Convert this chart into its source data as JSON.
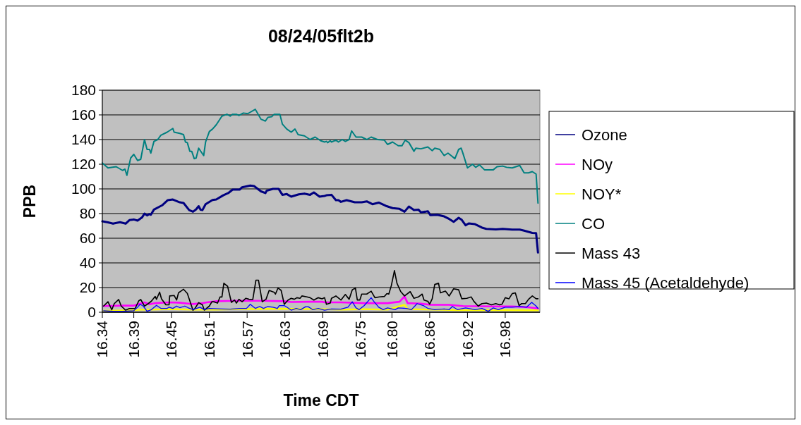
{
  "chart_data": {
    "type": "line",
    "title": "08/24/05flt2b",
    "xlabel": "Time CDT",
    "ylabel": "PPB",
    "xlim": [
      16.34,
      17.035
    ],
    "xticks": [
      16.34,
      16.39,
      16.45,
      16.51,
      16.57,
      16.63,
      16.69,
      16.75,
      {
        "value": 16.8,
        "label": "16.80"
      },
      16.86,
      16.92,
      16.98
    ],
    "ylim": [
      0,
      180
    ],
    "yticks": [
      0,
      20,
      40,
      60,
      80,
      100,
      120,
      140,
      160,
      180
    ],
    "grid": "y",
    "legend": "right",
    "line_style": "solid",
    "marker": "none",
    "series": [
      {
        "name": "Ozone",
        "color": "#000080",
        "x": [
          16.34,
          16.349,
          16.357,
          16.368,
          16.377,
          16.383,
          16.39,
          16.396,
          16.403,
          16.407,
          16.411,
          16.415,
          16.417,
          16.422,
          16.435,
          16.444,
          16.452,
          16.463,
          16.469,
          16.478,
          16.484,
          16.489,
          16.493,
          16.496,
          16.499,
          16.504,
          16.515,
          16.521,
          16.532,
          16.54,
          16.547,
          16.558,
          16.562,
          16.575,
          16.581,
          16.592,
          16.599,
          16.601,
          16.611,
          16.62,
          16.626,
          16.633,
          16.64,
          16.652,
          16.661,
          16.67,
          16.676,
          16.685,
          16.693,
          16.696,
          16.704,
          16.711,
          16.715,
          16.719,
          16.728,
          16.741,
          16.752,
          16.76,
          16.769,
          16.779,
          16.79,
          16.801,
          16.812,
          16.82,
          16.827,
          16.835,
          16.842,
          16.846,
          16.853,
          16.857,
          16.861,
          16.872,
          16.883,
          16.891,
          16.898,
          16.906,
          16.911,
          16.917,
          16.922,
          16.932,
          16.943,
          16.95,
          16.965,
          16.976,
          16.991,
          17.003,
          17.01,
          17.023,
          17.029,
          17.032
        ],
        "values": [
          73.7,
          72.8,
          71.8,
          73,
          71.8,
          74.7,
          75.2,
          74.3,
          76.8,
          80,
          78.5,
          79.6,
          79,
          83.2,
          86.7,
          90.9,
          91.4,
          89.1,
          88.6,
          82.8,
          81.5,
          83.4,
          86,
          83.2,
          82.8,
          87.6,
          91,
          91.4,
          94.8,
          96.6,
          99.4,
          99.4,
          101.3,
          102.7,
          102.3,
          98,
          96.6,
          98.5,
          100,
          100,
          95.2,
          95.8,
          93.7,
          95.6,
          96.2,
          95.2,
          97.1,
          93.7,
          94.3,
          94.8,
          95.2,
          90.9,
          90.9,
          89.5,
          90.9,
          89.1,
          89.1,
          89.9,
          87.6,
          88.9,
          86.3,
          84.4,
          83.8,
          81.5,
          85.7,
          82.8,
          83.2,
          81,
          81.5,
          81.9,
          78.7,
          79,
          77.7,
          75.6,
          73.3,
          76.6,
          74.8,
          70.5,
          72,
          71.4,
          68.6,
          67.6,
          67.2,
          67.6,
          67,
          67,
          66.1,
          64.3,
          64.1,
          48.4
        ]
      },
      {
        "name": "NOy",
        "color": "#ff00ff",
        "x": [
          16.342,
          16.372,
          16.39,
          16.407,
          16.415,
          16.424,
          16.446,
          16.461,
          16.476,
          16.484,
          16.499,
          16.506,
          16.521,
          16.551,
          16.596,
          16.629,
          16.64,
          16.67,
          16.689,
          16.693,
          16.719,
          16.756,
          16.793,
          16.812,
          16.82,
          16.825,
          16.846,
          16.861,
          16.891,
          16.913,
          16.961,
          16.991,
          17.017,
          17.032
        ],
        "values": [
          5,
          5.4,
          5.4,
          8,
          6.4,
          7.4,
          8,
          7.8,
          7,
          6.6,
          7.4,
          8,
          8.9,
          9.3,
          9.3,
          8.9,
          8.3,
          8.5,
          8.5,
          8,
          8,
          7.4,
          7.4,
          8.5,
          12.8,
          7.4,
          7,
          6,
          6,
          5,
          4.7,
          4.7,
          4,
          3.1
        ]
      },
      {
        "name": "NOY*",
        "color": "#ffff00",
        "x": [
          16.342,
          16.39,
          16.401,
          16.417,
          16.446,
          16.484,
          16.521,
          16.558,
          16.596,
          16.633,
          16.689,
          16.719,
          16.756,
          16.793,
          16.82,
          16.825,
          16.868,
          16.906,
          16.943,
          16.98,
          17.032
        ],
        "values": [
          1.2,
          1.6,
          2.1,
          2.1,
          2.5,
          2.1,
          2.1,
          2.5,
          2.7,
          2.7,
          2.5,
          2.1,
          2.5,
          2.1,
          6,
          2.5,
          2.1,
          1.7,
          1.7,
          1.7,
          1.6
        ]
      },
      {
        "name": "CO",
        "color": "#008080",
        "x": [
          16.34,
          16.349,
          16.362,
          16.372,
          16.376,
          16.379,
          16.385,
          16.39,
          16.396,
          16.401,
          16.407,
          16.411,
          16.415,
          16.417,
          16.422,
          16.428,
          16.433,
          16.443,
          16.452,
          16.454,
          16.463,
          16.469,
          16.472,
          16.475,
          16.479,
          16.482,
          16.486,
          16.489,
          16.493,
          16.501,
          16.504,
          16.51,
          16.515,
          16.521,
          16.53,
          16.538,
          16.543,
          16.547,
          16.553,
          16.557,
          16.564,
          16.571,
          16.583,
          16.592,
          16.599,
          16.603,
          16.609,
          16.613,
          16.622,
          16.626,
          16.633,
          16.64,
          16.646,
          16.651,
          16.661,
          16.67,
          16.678,
          16.687,
          16.693,
          16.696,
          16.698,
          16.702,
          16.704,
          16.711,
          16.715,
          16.721,
          16.726,
          16.732,
          16.736,
          16.743,
          16.752,
          16.76,
          16.767,
          16.777,
          16.788,
          16.793,
          16.801,
          16.81,
          16.816,
          16.821,
          16.827,
          16.835,
          16.838,
          16.846,
          16.857,
          16.864,
          16.868,
          16.876,
          16.883,
          16.889,
          16.894,
          16.9,
          16.906,
          16.91,
          16.913,
          16.92,
          16.928,
          16.933,
          16.939,
          16.947,
          16.961,
          16.967,
          16.976,
          16.982,
          16.991,
          17.003,
          17.01,
          17.017,
          17.023,
          17.029,
          17.032
        ],
        "values": [
          121,
          117,
          118,
          115,
          116,
          111,
          125,
          128,
          123,
          124,
          140,
          132,
          132,
          129,
          138.5,
          140,
          143.5,
          146,
          149,
          146,
          145,
          144,
          138,
          137.5,
          130.5,
          130.5,
          124.5,
          125,
          133,
          127,
          138,
          146.5,
          148.5,
          152,
          159,
          160.5,
          159,
          160.5,
          160.5,
          159.5,
          161.5,
          161,
          164.5,
          156.5,
          155,
          158,
          158.5,
          160.5,
          160.5,
          152.5,
          148.5,
          146,
          148.5,
          144,
          143,
          140,
          142,
          139,
          138,
          138.5,
          137.5,
          139,
          138,
          139.5,
          138,
          140,
          138.5,
          140,
          147,
          142,
          142,
          140,
          142,
          140,
          139.5,
          136,
          138,
          135,
          135,
          139.5,
          137.5,
          130.5,
          133,
          132.5,
          134,
          131,
          133,
          132,
          127,
          129,
          127,
          124.5,
          132,
          133,
          128.5,
          117,
          120,
          117.5,
          119.5,
          115.5,
          115.5,
          118,
          118.5,
          117.5,
          117,
          119,
          113,
          113,
          114,
          112,
          88.5
        ]
      },
      {
        "name": "Mass 43",
        "color": "#000000",
        "x": [
          16.342,
          16.349,
          16.355,
          16.359,
          16.366,
          16.37,
          16.377,
          16.383,
          16.392,
          16.398,
          16.401,
          16.407,
          16.413,
          16.418,
          16.424,
          16.426,
          16.431,
          16.434,
          16.441,
          16.446,
          16.447,
          16.454,
          16.458,
          16.461,
          16.469,
          16.475,
          16.484,
          16.487,
          16.493,
          16.499,
          16.502,
          16.51,
          16.514,
          16.517,
          16.523,
          16.527,
          16.53,
          16.533,
          16.539,
          16.545,
          16.55,
          16.553,
          16.557,
          16.562,
          16.568,
          16.573,
          16.579,
          16.584,
          16.588,
          16.594,
          16.6,
          16.605,
          16.613,
          16.615,
          16.619,
          16.624,
          16.629,
          16.635,
          16.64,
          16.645,
          16.649,
          16.654,
          16.657,
          16.665,
          16.67,
          16.676,
          16.683,
          16.689,
          16.693,
          16.696,
          16.702,
          16.704,
          16.711,
          16.719,
          16.726,
          16.732,
          16.737,
          16.742,
          16.745,
          16.749,
          16.752,
          16.76,
          16.767,
          16.773,
          16.78,
          16.788,
          16.792,
          16.795,
          16.799,
          16.804,
          16.808,
          16.814,
          16.82,
          16.829,
          16.835,
          16.842,
          16.848,
          16.851,
          16.857,
          16.86,
          16.864,
          16.868,
          16.874,
          16.877,
          16.885,
          16.891,
          16.898,
          16.906,
          16.911,
          16.919,
          16.926,
          16.93,
          16.937,
          16.943,
          16.95,
          16.958,
          16.965,
          16.971,
          16.975,
          16.98,
          16.986,
          16.991,
          16.996,
          17.002,
          17.006,
          17.012,
          17.017,
          17.023,
          17.029,
          17.032
        ],
        "values": [
          5,
          8.5,
          2,
          7,
          10.3,
          5,
          1.7,
          3,
          3,
          9.3,
          10.3,
          5,
          7,
          9,
          12.8,
          10.5,
          16.3,
          10.9,
          6,
          6,
          13.2,
          13.6,
          9.9,
          15.7,
          18.6,
          15.3,
          1.6,
          3,
          7.8,
          6,
          1.7,
          5,
          8.5,
          8.5,
          7.4,
          12.4,
          12.4,
          23.5,
          21,
          8,
          9.9,
          7.4,
          10.5,
          8.5,
          11.3,
          10.5,
          10.3,
          26,
          26,
          8.5,
          10.5,
          17.7,
          16.1,
          14.7,
          19.6,
          17.7,
          6.4,
          9.9,
          11.3,
          10.5,
          11.8,
          11.3,
          13.2,
          12.4,
          11.8,
          9.9,
          11.8,
          10.9,
          11.8,
          6.4,
          7.4,
          11.3,
          13.2,
          9.9,
          14.4,
          10.5,
          18.2,
          19.6,
          9.9,
          9.9,
          14.7,
          14.7,
          17.1,
          11.8,
          12.4,
          12.8,
          15.1,
          14.7,
          21.5,
          33.8,
          23.5,
          16.7,
          13.2,
          16.7,
          11.3,
          12.4,
          14.7,
          9.9,
          8.9,
          6.6,
          10.9,
          22.5,
          23.5,
          15.7,
          17.1,
          13.2,
          19,
          18.2,
          10.9,
          11.3,
          12.4,
          8.9,
          5,
          7,
          7.4,
          6,
          7,
          6,
          6.6,
          11.8,
          10.9,
          15.1,
          15.7,
          5.4,
          7,
          7,
          10.5,
          13.2,
          10.9,
          10.9
        ]
      },
      {
        "name": "Mass 45 (Acetaldehyde)",
        "color": "#0000ff",
        "x": [
          16.342,
          16.357,
          16.372,
          16.39,
          16.396,
          16.4,
          16.405,
          16.411,
          16.418,
          16.426,
          16.433,
          16.443,
          16.446,
          16.452,
          16.458,
          16.463,
          16.471,
          16.476,
          16.484,
          16.495,
          16.502,
          16.51,
          16.529,
          16.543,
          16.558,
          16.569,
          16.575,
          16.583,
          16.59,
          16.596,
          16.603,
          16.611,
          16.618,
          16.621,
          16.629,
          16.633,
          16.64,
          16.648,
          16.655,
          16.663,
          16.667,
          16.674,
          16.683,
          16.693,
          16.704,
          16.719,
          16.73,
          16.737,
          16.743,
          16.748,
          16.756,
          16.767,
          16.771,
          16.779,
          16.786,
          16.793,
          16.805,
          16.81,
          16.823,
          16.831,
          16.84,
          16.85,
          16.857,
          16.868,
          16.883,
          16.891,
          16.896,
          16.904,
          16.917,
          16.932,
          16.943,
          16.953,
          16.961,
          16.969,
          16.98,
          16.991,
          17.003,
          17.014,
          17.022,
          17.029,
          17.032
        ],
        "values": [
          1.2,
          0.8,
          0.8,
          1.2,
          4.1,
          6.4,
          5,
          0.8,
          2.1,
          5.6,
          3.1,
          3.1,
          4.1,
          3.1,
          5,
          3.7,
          5,
          3.7,
          2.1,
          4.1,
          2.1,
          3.1,
          2.7,
          2.5,
          3.1,
          3.1,
          6.4,
          3.1,
          4.7,
          3.1,
          4.7,
          4.1,
          3.1,
          5.4,
          5.4,
          4.1,
          1.7,
          3.1,
          2.1,
          4.5,
          4.5,
          2.1,
          3.1,
          1.7,
          2.7,
          2.5,
          4.1,
          8.5,
          3.5,
          2.1,
          5.4,
          11.8,
          8.9,
          4.1,
          2.1,
          3.5,
          2.1,
          3.5,
          3.1,
          2.1,
          7,
          5.4,
          3.1,
          2.1,
          2.7,
          2.1,
          4.7,
          2.1,
          3.5,
          2.1,
          3.1,
          0.8,
          3.5,
          2.1,
          4.1,
          4.1,
          4.7,
          4.1,
          8,
          5,
          3.1
        ]
      }
    ]
  }
}
